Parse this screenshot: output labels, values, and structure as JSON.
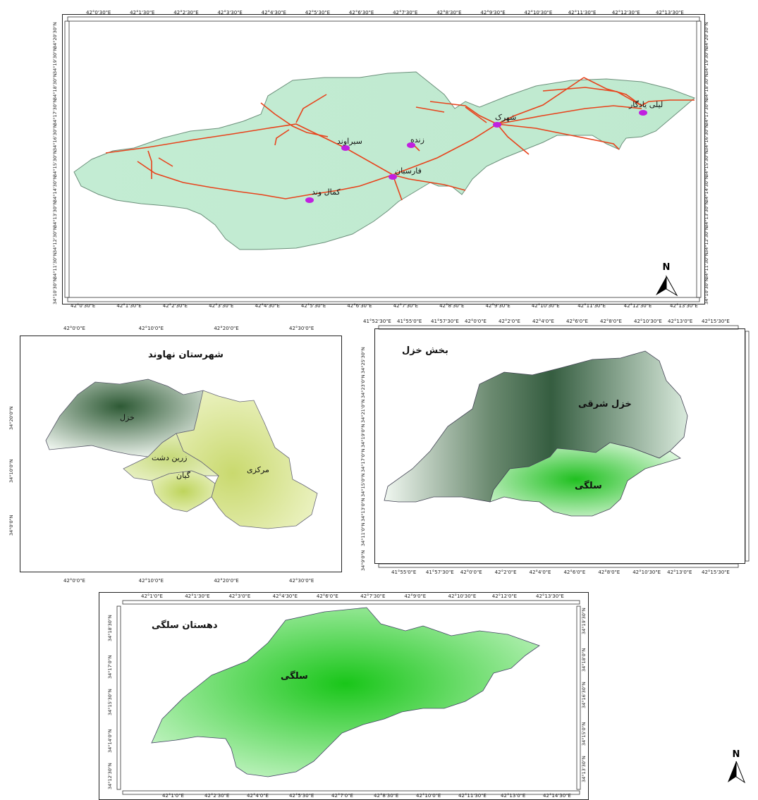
{
  "map1": {
    "top_lon_labels": [
      "42°0'30\"E",
      "42°1'30\"E",
      "42°2'30\"E",
      "42°3'30\"E",
      "42°4'30\"E",
      "42°5'30\"E",
      "42°6'30\"E",
      "42°7'30\"E",
      "42°8'30\"E",
      "42°9'30\"E",
      "42°10'30\"E",
      "42°11'30\"E",
      "42°12'30\"E",
      "42°13'30\"E"
    ],
    "bottom_lon_labels": [
      "42°0'30\"E",
      "42°1'30\"E",
      "42°2'30\"E",
      "42°3'30\"E",
      "42°4'30\"E",
      "42°5'30\"E",
      "42°6'30\"E",
      "42°7'30\"E",
      "42°8'30\"E",
      "42°9'30\"E",
      "42°10'30\"E",
      "42°11'30\"E",
      "42°12'30\"E",
      "42°13'30\"E"
    ],
    "left_lat_labels": [
      "34°20'30\"N",
      "34°19'30\"N",
      "34°18'30\"N",
      "34°17'30\"N",
      "34°16'30\"N",
      "34°15'30\"N",
      "34°14'30\"N",
      "34°13'30\"N",
      "34°12'30\"N",
      "34°11'30\"N",
      "34°10'30\"N"
    ],
    "right_lat_labels": [
      "34°20'30\"N",
      "34°19'30\"N",
      "34°18'30\"N",
      "34°17'30\"N",
      "34°16'30\"N",
      "34°15'30\"N",
      "34°14'30\"N",
      "34°13'30\"N",
      "34°12'30\"N",
      "34°11'30\"N",
      "34°10'30\"N"
    ],
    "villages": [
      "لیلی یادگار",
      "شهرک",
      "زنده",
      "سیراوند",
      "فارسبان",
      "کمال وند"
    ],
    "north": "N",
    "colors": {
      "land": "#c3ecd3",
      "road": "#e8431c",
      "village": "#c020e0"
    }
  },
  "map2": {
    "title": "شهرستان نهاوند",
    "top_lon_labels": [
      "42°0'0\"E",
      "42°10'0\"E",
      "42°20'0\"E",
      "42°30'0\"E"
    ],
    "bottom_lon_labels": [
      "42°0'0\"E",
      "42°10'0\"E",
      "42°20'0\"E",
      "42°30'0\"E"
    ],
    "left_lat_labels": [
      "34°20'0\"N",
      "34°10'0\"N",
      "34°0'0\"N"
    ],
    "regions": [
      "خزل",
      "زرین دشت",
      "گیان",
      "مرکزی"
    ],
    "colors": {
      "khazal": "#3d6b45",
      "markazi": "#d2e08a"
    }
  },
  "map3": {
    "title": "بخش خزل",
    "top_lon_labels": [
      "41°52'30\"E",
      "41°55'0\"E",
      "41°57'30\"E",
      "42°0'0\"E",
      "42°2'0\"E",
      "42°4'0\"E",
      "42°6'0\"E",
      "42°8'0\"E",
      "42°10'30\"E",
      "42°13'0\"E",
      "42°15'30\"E"
    ],
    "bottom_lon_labels": [
      "41°55'0\"E",
      "41°57'30\"E",
      "42°0'0\"E",
      "42°2'0\"E",
      "42°4'0\"E",
      "42°6'0\"E",
      "42°8'0\"E",
      "42°10'30\"E",
      "42°13'0\"E",
      "42°15'30\"E"
    ],
    "left_lat_labels": [
      "34°25'30\"N",
      "34°23'0\"N",
      "34°21'0\"N",
      "34°19'0\"N",
      "34°17'0\"N",
      "34°15'0\"N",
      "34°13'0\"N",
      "34°11'0\"N",
      "34°9'0\"N"
    ],
    "regions": [
      "خزل شرقی",
      "سلگی"
    ],
    "colors": {
      "east": "#3e6a4c",
      "solgi": "#2fc62f"
    }
  },
  "map4": {
    "title": "دهستان سلگی",
    "top_lon_labels": [
      "42°1'0\"E",
      "42°1'30\"E",
      "42°3'0\"E",
      "42°4'30\"E",
      "42°6'0\"E",
      "42°7'30\"E",
      "42°9'0\"E",
      "42°10'30\"E",
      "42°12'0\"E",
      "42°13'30\"E"
    ],
    "bottom_lon_labels": [
      "42°1'0\"E",
      "42°2'30\"E",
      "42°4'0\"E",
      "42°5'30\"E",
      "42°7'0\"E",
      "42°8'30\"E",
      "42°10'0\"E",
      "42°11'30\"E",
      "42°13'0\"E",
      "42°14'30\"E"
    ],
    "right_lat_labels": [
      "34°19'30\"N",
      "34°18'0\"N",
      "34°16'30\"N",
      "34°15'0\"N",
      "34°13'30\"N"
    ],
    "left_lat_labels": [
      "34°18'30\"N",
      "34°17'0\"N",
      "34°15'30\"N",
      "34°14'0\"N",
      "34°12'30\"N"
    ],
    "regions": [
      "سلگی"
    ],
    "north": "N",
    "colors": {
      "solgi": "#1ec81e"
    }
  }
}
